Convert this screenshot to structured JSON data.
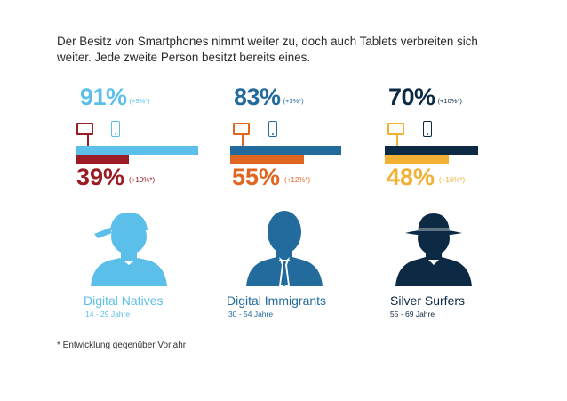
{
  "headline": "Der Besitz von Smartphones nimmt weiter zu, doch auch Tablets verbreiten sich weiter. Jede zweite Person besitzt bereits eines.",
  "footnote": "* Entwicklung gegenüber Vorjahr",
  "groups": [
    {
      "name": "Digital Natives",
      "age": "14 - 29 Jahre",
      "smartphone": {
        "label": "91%",
        "change": "(+9%*)",
        "value": 91
      },
      "tablet": {
        "label": "39%",
        "change": "(+10%*)",
        "value": 39
      },
      "colors": {
        "smartphone": "#5bbfe9",
        "tablet": "#9b1c24",
        "avatar": "#5bbfe9",
        "name": "#5bbfe9",
        "age": "#5bbfe9"
      },
      "icon": "person-with-cap-icon"
    },
    {
      "name": "Digital Immigrants",
      "age": "30 - 54 Jahre",
      "smartphone": {
        "label": "83%",
        "change": "(+3%*)",
        "value": 83
      },
      "tablet": {
        "label": "55%",
        "change": "(+12%*)",
        "value": 55
      },
      "colors": {
        "smartphone": "#236b9d",
        "tablet": "#e06621",
        "avatar": "#236b9d",
        "name": "#236b9d",
        "age": "#236b9d"
      },
      "icon": "person-with-tie-icon"
    },
    {
      "name": "Silver Surfers",
      "age": "55 - 69 Jahre",
      "smartphone": {
        "label": "70%",
        "change": "(+10%*)",
        "value": 70
      },
      "tablet": {
        "label": "48%",
        "change": "(+16%*)",
        "value": 48
      },
      "colors": {
        "smartphone": "#0d2a44",
        "tablet": "#f2b134",
        "avatar": "#0d2a44",
        "name": "#0d2a44",
        "age": "#0d2a44"
      },
      "icon": "person-with-hat-icon"
    }
  ],
  "chart_data": {
    "type": "bar",
    "categories": [
      "Digital Natives",
      "Digital Immigrants",
      "Silver Surfers"
    ],
    "category_sublabels": [
      "14 - 29 Jahre",
      "30 - 54 Jahre",
      "55 - 69 Jahre"
    ],
    "series": [
      {
        "values": [
          91,
          83,
          70
        ],
        "changes": [
          "(+9%*)",
          "(+3%*)",
          "(+10%*)"
        ]
      },
      {
        "values": [
          39,
          55,
          48
        ],
        "changes": [
          "(+10%*)",
          "(+12%*)",
          "(+16%*)"
        ]
      }
    ],
    "ylim": [
      0,
      100
    ],
    "title": "Der Besitz von Smartphones nimmt weiter zu, doch auch Tablets verbreiten sich weiter. Jede zweite Person besitzt bereits eines.",
    "annotations": [
      "* Entwicklung gegenüber Vorjahr"
    ],
    "grid": false
  }
}
